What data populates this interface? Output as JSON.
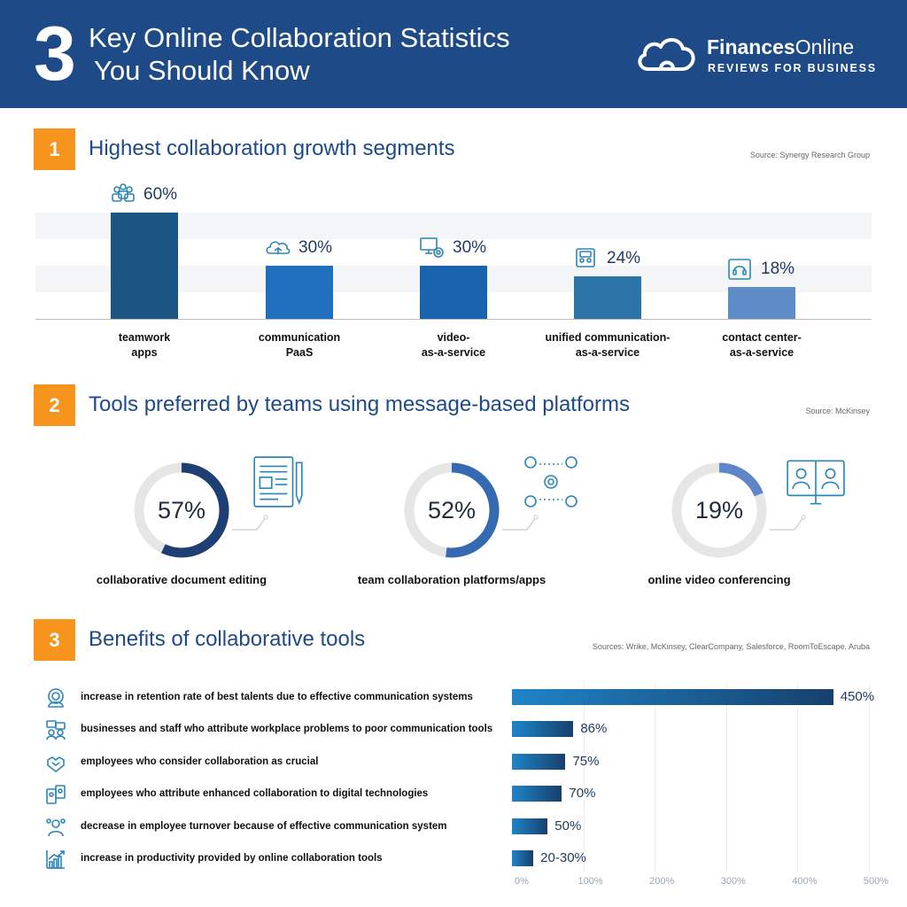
{
  "header": {
    "number": "3",
    "title_line1": "Key Online Collaboration Statistics",
    "title_line2": "You Should Know",
    "brand_bold": "Finances",
    "brand_light": "Online",
    "brand_tagline": "REVIEWS FOR BUSINESS"
  },
  "sections": [
    {
      "number": "1",
      "title": "Highest collaboration growth segments",
      "source": "Source: Synergy Research Group"
    },
    {
      "number": "2",
      "title": "Tools preferred by teams using message-based platforms",
      "source": "Source: McKinsey"
    },
    {
      "number": "3",
      "title": "Benefits of collaborative tools",
      "source": "Sources: Wrike, McKinsey, ClearCompany, Salesforce, RoomToEscape, Aruba"
    }
  ],
  "chart_data": [
    {
      "type": "bar",
      "title": "Highest collaboration growth segments",
      "categories": [
        [
          "teamwork",
          "apps"
        ],
        [
          "communication",
          "PaaS"
        ],
        [
          "video-",
          "as-a-service"
        ],
        [
          "unified communication-",
          "as-a-service"
        ],
        [
          "contact center-",
          "as-a-service"
        ]
      ],
      "values": [
        60,
        30,
        30,
        24,
        18
      ],
      "value_labels": [
        "60%",
        "30%",
        "30%",
        "24%",
        "18%"
      ],
      "icons": [
        "team-icon",
        "cloud-icon",
        "video-monitor-icon",
        "video-call-icon",
        "headset-icon"
      ],
      "colors": [
        "#1a5483",
        "#1f6fbd",
        "#1a63ad",
        "#2c74a6",
        "#5d8cc7"
      ],
      "ylim": [
        0,
        60
      ]
    },
    {
      "type": "pie",
      "title": "Tools preferred by teams using message-based platforms",
      "items": [
        {
          "label": "collaborative document editing",
          "value": 57,
          "value_label": "57%",
          "color": "#1e3f73",
          "icon": "document-edit-icon"
        },
        {
          "label": "team collaboration platforms/apps",
          "value": 52,
          "value_label": "52%",
          "color": "#3569b4",
          "icon": "team-gear-icon"
        },
        {
          "label": "online video conferencing",
          "value": 19,
          "value_label": "19%",
          "color": "#5f86c8",
          "icon": "video-conference-icon"
        }
      ],
      "track_color": "#e6e6e6"
    },
    {
      "type": "bar",
      "orientation": "horizontal",
      "title": "Benefits of collaborative tools",
      "categories": [
        "increase in retention rate of best talents due to effective communication systems",
        "businesses and staff who attribute workplace problems to poor communication tools",
        "employees who consider collaboration as crucial",
        "employees who attribute enhanced collaboration to digital technologies",
        "decrease in employee turnover because of effective communication system",
        "increase in productivity provided by online collaboration tools"
      ],
      "values": [
        450,
        86,
        75,
        70,
        50,
        30
      ],
      "value_labels": [
        "450%",
        "86%",
        "75%",
        "70%",
        "50%",
        "20-30%"
      ],
      "icons": [
        "talent-icon",
        "chat-people-icon",
        "handshake-icon",
        "digital-devices-icon",
        "team-turnover-icon",
        "growth-chart-icon"
      ],
      "xlim": [
        0,
        500
      ],
      "xticks": [
        "0%",
        "100%",
        "200%",
        "300%",
        "400%",
        "500%"
      ]
    }
  ]
}
